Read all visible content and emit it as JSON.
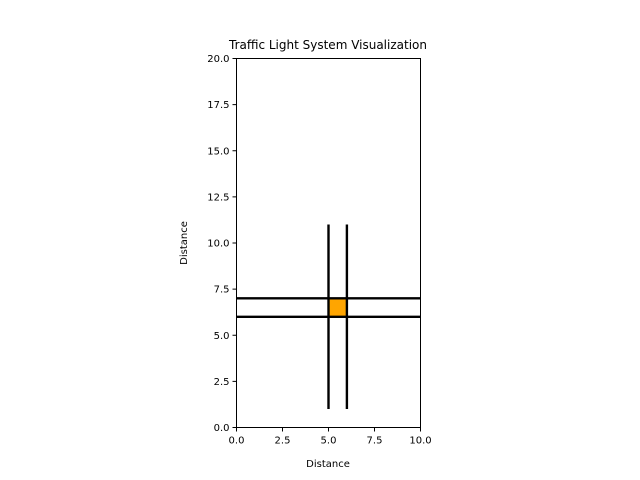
{
  "chart_data": {
    "type": "line",
    "title": "Traffic Light System Visualization",
    "xlabel": "Distance",
    "ylabel": "Distance",
    "xlim": [
      0,
      10
    ],
    "ylim": [
      0,
      20
    ],
    "xticks": [
      "0.0",
      "2.5",
      "5.0",
      "7.5",
      "10.0"
    ],
    "yticks": [
      "0.0",
      "2.5",
      "5.0",
      "7.5",
      "10.0",
      "12.5",
      "15.0",
      "17.5",
      "20.0"
    ],
    "grid": false,
    "roads": [
      {
        "x": [
          0,
          10
        ],
        "y": [
          7,
          7
        ]
      },
      {
        "x": [
          0,
          10
        ],
        "y": [
          6,
          6
        ]
      },
      {
        "x": [
          5,
          5
        ],
        "y": [
          1,
          11
        ]
      },
      {
        "x": [
          6,
          6
        ],
        "y": [
          1,
          11
        ]
      }
    ],
    "light": {
      "x": [
        5,
        6
      ],
      "y": [
        6,
        7
      ],
      "color": "#ffa500"
    }
  }
}
